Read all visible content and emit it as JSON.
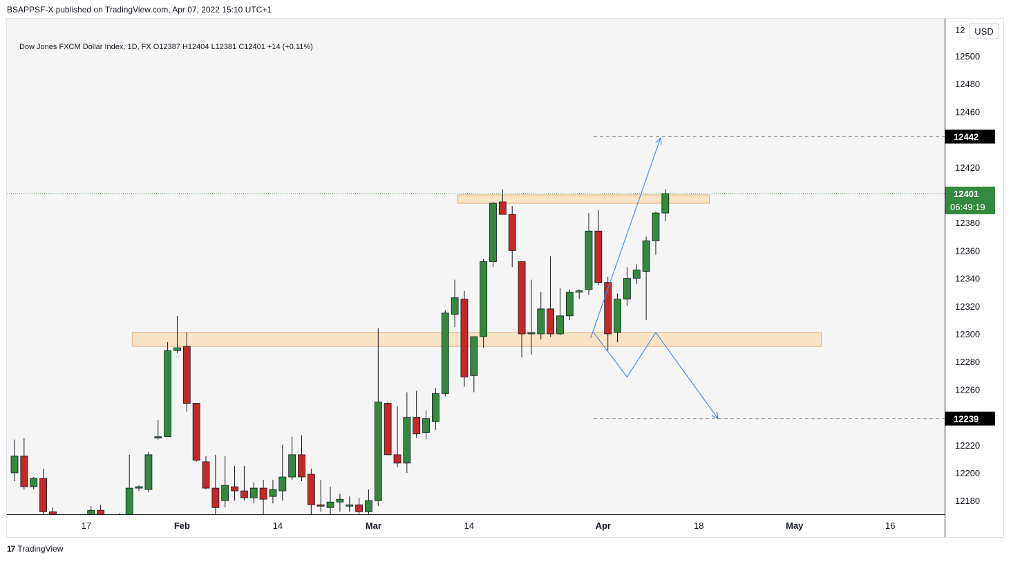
{
  "header": {
    "publish_line": "BSAPPSF-X published on TradingView.com, Apr 07, 2022 15:10 UTC+1"
  },
  "legend": {
    "text": "Dow Jones FXCM Dollar Index, 1D, FX  O12387  H12404  L12381  C12401  +14 (+0.11%)"
  },
  "footer": {
    "logo": "17",
    "brand": "TradingView"
  },
  "colors": {
    "up": "#338a3e",
    "down": "#c62828",
    "zone_fill": "#fbe3c3",
    "zone_stroke": "#e3a96b",
    "projection": "#4a8fe7",
    "current_label_bg": "#338a3e",
    "target_label_bg": "#000000",
    "grid_bg": "#f5f5f5"
  },
  "chart_data": {
    "type": "candlestick",
    "symbol": "Dow Jones FXCM Dollar Index",
    "timeframe": "1D",
    "currency": "USD",
    "ylim": [
      12174,
      12520
    ],
    "y_ticks": [
      12500,
      12480,
      12460,
      12420,
      12380,
      12360,
      12340,
      12320,
      12300,
      12280,
      12260,
      12220,
      12200,
      12180
    ],
    "y_top_cut_label": "12",
    "x_ticks": [
      {
        "label": "17",
        "bar": 7.5
      },
      {
        "label": "Feb",
        "bar": 17.5
      },
      {
        "label": "14",
        "bar": 27.5
      },
      {
        "label": "Mar",
        "bar": 37.5
      },
      {
        "label": "14",
        "bar": 47.5
      },
      {
        "label": "Apr",
        "bar": 61.5
      },
      {
        "label": "18",
        "bar": 71.5
      },
      {
        "label": "May",
        "bar": 81.5
      },
      {
        "label": "16",
        "bar": 91.5
      }
    ],
    "bold_x_ticks": [
      "Feb",
      "Mar",
      "Apr",
      "May"
    ],
    "candles": [
      {
        "o": 12200,
        "h": 12224,
        "l": 12194,
        "c": 12212
      },
      {
        "o": 12212,
        "h": 12225,
        "l": 12188,
        "c": 12190
      },
      {
        "o": 12190,
        "h": 12197,
        "l": 12188,
        "c": 12196
      },
      {
        "o": 12196,
        "h": 12203,
        "l": 12170,
        "c": 12172
      },
      {
        "o": 12172,
        "h": 12175,
        "l": 12165,
        "c": 12168
      },
      {
        "o": 12168,
        "h": 12170,
        "l": 12160,
        "c": 12162
      },
      {
        "o": 12165,
        "h": 12170,
        "l": 12160,
        "c": 12167
      },
      {
        "o": 12165,
        "h": 12170,
        "l": 12155,
        "c": 12168
      },
      {
        "o": 12168,
        "h": 12176,
        "l": 12165,
        "c": 12173
      },
      {
        "o": 12173,
        "h": 12177,
        "l": 12160,
        "c": 12170
      },
      {
        "o": 12160,
        "h": 12168,
        "l": 12155,
        "c": 12165
      },
      {
        "o": 12165,
        "h": 12171,
        "l": 12160,
        "c": 12169
      },
      {
        "o": 12170,
        "h": 12213,
        "l": 12168,
        "c": 12189
      },
      {
        "o": 12189,
        "h": 12191,
        "l": 12187,
        "c": 12190
      },
      {
        "o": 12188,
        "h": 12215,
        "l": 12186,
        "c": 12213
      },
      {
        "o": 12225,
        "h": 12238,
        "l": 12224,
        "c": 12226
      },
      {
        "o": 12226,
        "h": 12294,
        "l": 12226,
        "c": 12288
      },
      {
        "o": 12288,
        "h": 12313,
        "l": 12286,
        "c": 12290
      },
      {
        "o": 12291,
        "h": 12301,
        "l": 12244,
        "c": 12250
      },
      {
        "o": 12250,
        "h": 12250,
        "l": 12208,
        "c": 12209
      },
      {
        "o": 12208,
        "h": 12212,
        "l": 12188,
        "c": 12189
      },
      {
        "o": 12189,
        "h": 12213,
        "l": 12170,
        "c": 12175
      },
      {
        "o": 12180,
        "h": 12212,
        "l": 12175,
        "c": 12191
      },
      {
        "o": 12190,
        "h": 12205,
        "l": 12180,
        "c": 12187
      },
      {
        "o": 12187,
        "h": 12205,
        "l": 12180,
        "c": 12182
      },
      {
        "o": 12182,
        "h": 12193,
        "l": 12178,
        "c": 12189
      },
      {
        "o": 12189,
        "h": 12195,
        "l": 12170,
        "c": 12181
      },
      {
        "o": 12183,
        "h": 12195,
        "l": 12178,
        "c": 12188
      },
      {
        "o": 12187,
        "h": 12220,
        "l": 12180,
        "c": 12197
      },
      {
        "o": 12197,
        "h": 12226,
        "l": 12195,
        "c": 12213
      },
      {
        "o": 12213,
        "h": 12227,
        "l": 12194,
        "c": 12197
      },
      {
        "o": 12199,
        "h": 12203,
        "l": 12170,
        "c": 12177
      },
      {
        "o": 12177,
        "h": 12195,
        "l": 12172,
        "c": 12176
      },
      {
        "o": 12175,
        "h": 12190,
        "l": 12168,
        "c": 12179
      },
      {
        "o": 12179,
        "h": 12185,
        "l": 12172,
        "c": 12181
      },
      {
        "o": 12176,
        "h": 12183,
        "l": 12172,
        "c": 12177
      },
      {
        "o": 12177,
        "h": 12182,
        "l": 12170,
        "c": 12172
      },
      {
        "o": 12172,
        "h": 12188,
        "l": 12170,
        "c": 12180
      },
      {
        "o": 12180,
        "h": 12304,
        "l": 12176,
        "c": 12251
      },
      {
        "o": 12250,
        "h": 12251,
        "l": 12213,
        "c": 12213
      },
      {
        "o": 12213,
        "h": 12248,
        "l": 12204,
        "c": 12207
      },
      {
        "o": 12207,
        "h": 12258,
        "l": 12200,
        "c": 12240
      },
      {
        "o": 12240,
        "h": 12259,
        "l": 12225,
        "c": 12228
      },
      {
        "o": 12229,
        "h": 12245,
        "l": 12224,
        "c": 12239
      },
      {
        "o": 12237,
        "h": 12261,
        "l": 12231,
        "c": 12257
      },
      {
        "o": 12257,
        "h": 12317,
        "l": 12255,
        "c": 12315
      },
      {
        "o": 12314,
        "h": 12339,
        "l": 12305,
        "c": 12326
      },
      {
        "o": 12325,
        "h": 12331,
        "l": 12262,
        "c": 12269
      },
      {
        "o": 12270,
        "h": 12298,
        "l": 12258,
        "c": 12298
      },
      {
        "o": 12298,
        "h": 12354,
        "l": 12290,
        "c": 12352
      },
      {
        "o": 12352,
        "h": 12395,
        "l": 12348,
        "c": 12394
      },
      {
        "o": 12395,
        "h": 12404,
        "l": 12386,
        "c": 12386
      },
      {
        "o": 12386,
        "h": 12392,
        "l": 12348,
        "c": 12360
      },
      {
        "o": 12352,
        "h": 12352,
        "l": 12283,
        "c": 12300
      },
      {
        "o": 12300,
        "h": 12339,
        "l": 12285,
        "c": 12301
      },
      {
        "o": 12300,
        "h": 12330,
        "l": 12296,
        "c": 12318
      },
      {
        "o": 12318,
        "h": 12356,
        "l": 12298,
        "c": 12300
      },
      {
        "o": 12300,
        "h": 12333,
        "l": 12299,
        "c": 12313
      },
      {
        "o": 12313,
        "h": 12332,
        "l": 12310,
        "c": 12330
      },
      {
        "o": 12330,
        "h": 12332,
        "l": 12325,
        "c": 12331
      },
      {
        "o": 12332,
        "h": 12387,
        "l": 12328,
        "c": 12374
      },
      {
        "o": 12374,
        "h": 12389,
        "l": 12335,
        "c": 12337
      },
      {
        "o": 12337,
        "h": 12341,
        "l": 12288,
        "c": 12300
      },
      {
        "o": 12301,
        "h": 12329,
        "l": 12294,
        "c": 12325
      },
      {
        "o": 12325,
        "h": 12348,
        "l": 12320,
        "c": 12340
      },
      {
        "o": 12340,
        "h": 12350,
        "l": 12336,
        "c": 12346
      },
      {
        "o": 12345,
        "h": 12370,
        "l": 12310,
        "c": 12367
      },
      {
        "o": 12367,
        "h": 12388,
        "l": 12357,
        "c": 12387
      },
      {
        "o": 12387,
        "h": 12404,
        "l": 12381,
        "c": 12401
      }
    ],
    "zones": [
      {
        "from_bar": 46.3,
        "to_bar": 72.6,
        "top": 12400,
        "bottom": 12394
      },
      {
        "from_bar": 12.3,
        "to_bar": 84.3,
        "top": 12301,
        "bottom": 12291
      }
    ],
    "current_price_line": 12401,
    "target_lines": [
      {
        "value": 12442,
        "from_bar": 60.5
      },
      {
        "value": 12239,
        "from_bar": 60.5
      }
    ],
    "projection_up": [
      {
        "bar": 60.2,
        "value": 12297
      },
      {
        "bar": 67.5,
        "value": 12441
      }
    ],
    "projection_down": [
      {
        "bar": 60.5,
        "value": 12301
      },
      {
        "bar": 64.0,
        "value": 12269
      },
      {
        "bar": 67.0,
        "value": 12301
      },
      {
        "bar": 73.5,
        "value": 12239
      }
    ],
    "price_labels": {
      "target_high": "12442",
      "current": "12401",
      "countdown": "06:49:19",
      "target_low": "12239"
    }
  }
}
